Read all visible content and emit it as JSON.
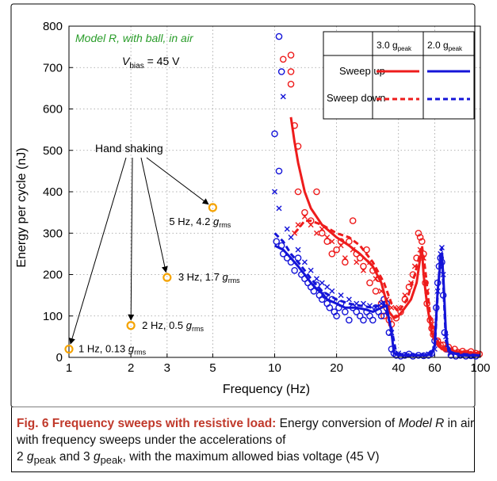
{
  "chart_data": {
    "type": "scatter",
    "xscale": "log",
    "xlim": [
      1,
      100
    ],
    "ylim": [
      0,
      800
    ],
    "xlabel": "Frequency (Hz)",
    "ylabel": "Energy per cycle (nJ)",
    "x_ticks": [
      1,
      2,
      3,
      5,
      10,
      20,
      40,
      60,
      100
    ],
    "y_ticks": [
      0,
      100,
      200,
      300,
      400,
      500,
      600,
      700,
      800
    ],
    "grid": true,
    "annotation_model": "Model R, with ball, in air",
    "annotation_vbias": {
      "prefix": "V",
      "sub": "bias",
      "suffix": " = 45 V"
    },
    "colors": {
      "3g": "#ee1c1c",
      "2g": "#1414d8",
      "hand": "#f5a300"
    },
    "legend": {
      "placement": "top-right",
      "col_headers": [
        {
          "main": "3.0 g",
          "sub": "peak"
        },
        {
          "main": "2.0 g",
          "sub": "peak"
        }
      ],
      "rows": [
        "Sweep up",
        "Sweep down"
      ]
    },
    "hand_shaking": {
      "label": "Hand shaking",
      "points": [
        {
          "x": 1,
          "y": 20,
          "label": "1 Hz, 0.13 g",
          "sub": "rms"
        },
        {
          "x": 2,
          "y": 77,
          "label": "2 Hz, 0.5 g",
          "sub": "rms"
        },
        {
          "x": 3,
          "y": 193,
          "label": "3 Hz, 1.7 g",
          "sub": "rms"
        },
        {
          "x": 5,
          "y": 362,
          "label": "5 Hz, 4.2 g",
          "sub": "rms"
        }
      ]
    },
    "series": [
      {
        "name": "3.0 gpeak sweep up",
        "color_key": "3g",
        "line": [
          [
            12,
            580
          ],
          [
            12.5,
            520
          ],
          [
            13,
            470
          ],
          [
            14,
            400
          ],
          [
            15,
            360
          ],
          [
            17,
            320
          ],
          [
            20,
            290
          ],
          [
            23,
            270
          ],
          [
            26,
            250
          ],
          [
            30,
            220
          ],
          [
            33,
            180
          ],
          [
            36,
            110
          ],
          [
            38,
            95
          ],
          [
            40,
            100
          ],
          [
            43,
            120
          ],
          [
            46,
            140
          ],
          [
            49,
            180
          ],
          [
            51,
            240
          ],
          [
            52,
            262
          ],
          [
            53,
            200
          ],
          [
            55,
            130
          ],
          [
            58,
            60
          ],
          [
            60,
            40
          ],
          [
            62,
            30
          ],
          [
            65,
            20
          ],
          [
            70,
            15
          ],
          [
            80,
            12
          ],
          [
            100,
            10
          ]
        ],
        "points": [
          [
            11,
            720
          ],
          [
            12,
            690
          ],
          [
            12,
            660
          ],
          [
            12,
            730
          ],
          [
            12.5,
            560
          ],
          [
            13,
            510
          ],
          [
            13,
            400
          ],
          [
            14,
            350
          ],
          [
            15,
            330
          ],
          [
            16,
            400
          ],
          [
            17,
            300
          ],
          [
            18,
            280
          ],
          [
            19,
            250
          ],
          [
            20,
            260
          ],
          [
            21,
            280
          ],
          [
            22,
            230
          ],
          [
            23,
            280
          ],
          [
            24,
            330
          ],
          [
            25,
            250
          ],
          [
            26,
            240
          ],
          [
            27,
            220
          ],
          [
            28,
            260
          ],
          [
            29,
            180
          ],
          [
            30,
            210
          ],
          [
            31,
            160
          ],
          [
            32,
            190
          ],
          [
            33,
            130
          ],
          [
            34,
            100
          ],
          [
            35,
            120
          ],
          [
            36,
            90
          ],
          [
            37,
            80
          ],
          [
            39,
            95
          ],
          [
            41,
            110
          ],
          [
            43,
            140
          ],
          [
            45,
            170
          ],
          [
            47,
            200
          ],
          [
            49,
            240
          ],
          [
            50,
            300
          ],
          [
            51,
            290
          ],
          [
            52,
            280
          ],
          [
            53,
            250
          ],
          [
            54,
            180
          ],
          [
            55,
            130
          ],
          [
            57,
            90
          ],
          [
            58,
            70
          ],
          [
            59,
            55
          ],
          [
            62,
            40
          ],
          [
            64,
            30
          ],
          [
            66,
            30
          ],
          [
            68,
            20
          ],
          [
            70,
            25
          ],
          [
            72,
            15
          ],
          [
            75,
            20
          ],
          [
            78,
            12
          ],
          [
            82,
            15
          ],
          [
            86,
            10
          ],
          [
            90,
            14
          ],
          [
            95,
            10
          ],
          [
            99,
            8
          ]
        ]
      },
      {
        "name": "3.0 gpeak sweep down",
        "color_key": "3g",
        "line": [
          [
            12.5,
            300
          ],
          [
            13,
            310
          ],
          [
            14,
            330
          ],
          [
            15,
            330
          ],
          [
            17,
            320
          ],
          [
            20,
            300
          ],
          [
            23,
            290
          ],
          [
            26,
            270
          ],
          [
            30,
            230
          ],
          [
            34,
            180
          ],
          [
            37,
            130
          ],
          [
            40,
            110
          ],
          [
            44,
            140
          ],
          [
            48,
            200
          ],
          [
            52,
            270
          ],
          [
            54,
            210
          ],
          [
            57,
            100
          ],
          [
            60,
            50
          ],
          [
            65,
            25
          ],
          [
            75,
            15
          ],
          [
            100,
            10
          ]
        ],
        "points": [
          [
            12.5,
            300
          ],
          [
            13,
            320
          ],
          [
            14,
            340
          ],
          [
            15,
            320
          ],
          [
            16,
            300
          ],
          [
            17,
            310
          ],
          [
            18,
            290
          ],
          [
            19,
            280
          ],
          [
            21,
            270
          ],
          [
            22,
            240
          ],
          [
            24,
            260
          ],
          [
            25,
            230
          ],
          [
            27,
            210
          ],
          [
            29,
            230
          ],
          [
            31,
            190
          ],
          [
            33,
            160
          ],
          [
            35,
            140
          ],
          [
            37,
            120
          ],
          [
            40,
            120
          ],
          [
            43,
            150
          ],
          [
            46,
            180
          ],
          [
            48,
            220
          ],
          [
            51,
            260
          ],
          [
            53,
            240
          ],
          [
            55,
            160
          ],
          [
            58,
            80
          ],
          [
            62,
            40
          ],
          [
            66,
            25
          ],
          [
            72,
            18
          ],
          [
            78,
            14
          ],
          [
            85,
            12
          ],
          [
            92,
            10
          ]
        ]
      },
      {
        "name": "2.0 gpeak sweep up",
        "color_key": "2g",
        "line": [
          [
            10,
            270
          ],
          [
            11,
            260
          ],
          [
            12,
            240
          ],
          [
            13,
            220
          ],
          [
            14,
            200
          ],
          [
            15,
            180
          ],
          [
            16,
            165
          ],
          [
            17,
            155
          ],
          [
            18,
            140
          ],
          [
            20,
            130
          ],
          [
            22,
            120
          ],
          [
            25,
            120
          ],
          [
            28,
            115
          ],
          [
            30,
            110
          ],
          [
            33,
            120
          ],
          [
            35,
            125
          ],
          [
            37,
            60
          ],
          [
            38,
            10
          ],
          [
            40,
            5
          ],
          [
            45,
            5
          ],
          [
            55,
            5
          ],
          [
            58,
            8
          ],
          [
            60,
            30
          ],
          [
            62,
            160
          ],
          [
            64,
            230
          ],
          [
            65,
            240
          ],
          [
            66,
            200
          ],
          [
            68,
            60
          ],
          [
            70,
            15
          ],
          [
            80,
            5
          ],
          [
            100,
            5
          ]
        ],
        "points": [
          [
            10,
            540
          ],
          [
            10.5,
            775
          ],
          [
            10.8,
            690
          ],
          [
            10.5,
            450
          ],
          [
            10.2,
            280
          ],
          [
            10.8,
            270
          ],
          [
            11,
            250
          ],
          [
            11.5,
            240
          ],
          [
            12,
            230
          ],
          [
            12.5,
            210
          ],
          [
            13,
            240
          ],
          [
            13.5,
            200
          ],
          [
            14,
            190
          ],
          [
            14.5,
            180
          ],
          [
            15,
            170
          ],
          [
            15.5,
            160
          ],
          [
            16,
            175
          ],
          [
            16.5,
            150
          ],
          [
            17,
            140
          ],
          [
            17.5,
            150
          ],
          [
            18,
            130
          ],
          [
            18.5,
            120
          ],
          [
            19,
            140
          ],
          [
            19.5,
            110
          ],
          [
            20,
            100
          ],
          [
            20.5,
            120
          ],
          [
            21,
            130
          ],
          [
            22,
            110
          ],
          [
            23,
            90
          ],
          [
            24,
            120
          ],
          [
            25,
            110
          ],
          [
            26,
            100
          ],
          [
            27,
            90
          ],
          [
            28,
            110
          ],
          [
            29,
            100
          ],
          [
            30,
            90
          ],
          [
            31,
            120
          ],
          [
            32,
            110
          ],
          [
            33,
            100
          ],
          [
            34,
            140
          ],
          [
            35,
            130
          ],
          [
            36,
            60
          ],
          [
            37,
            20
          ],
          [
            38,
            10
          ],
          [
            39,
            5
          ],
          [
            41,
            3
          ],
          [
            43,
            5
          ],
          [
            45,
            8
          ],
          [
            47,
            3
          ],
          [
            50,
            5
          ],
          [
            53,
            4
          ],
          [
            56,
            5
          ],
          [
            58,
            10
          ],
          [
            60,
            40
          ],
          [
            61,
            120
          ],
          [
            62,
            180
          ],
          [
            63,
            220
          ],
          [
            64,
            240
          ],
          [
            65,
            230
          ],
          [
            66,
            150
          ],
          [
            67,
            60
          ],
          [
            69,
            20
          ],
          [
            72,
            5
          ],
          [
            76,
            3
          ],
          [
            80,
            5
          ],
          [
            85,
            3
          ],
          [
            90,
            4
          ],
          [
            95,
            3
          ]
        ]
      },
      {
        "name": "2.0 gpeak sweep down",
        "color_key": "2g",
        "line": [
          [
            10,
            300
          ],
          [
            11,
            280
          ],
          [
            12,
            250
          ],
          [
            13,
            230
          ],
          [
            14,
            210
          ],
          [
            15,
            190
          ],
          [
            17,
            160
          ],
          [
            20,
            140
          ],
          [
            23,
            130
          ],
          [
            26,
            125
          ],
          [
            30,
            120
          ],
          [
            34,
            130
          ],
          [
            37,
            70
          ],
          [
            39,
            10
          ],
          [
            45,
            5
          ],
          [
            55,
            5
          ],
          [
            60,
            20
          ],
          [
            62,
            150
          ],
          [
            64,
            250
          ],
          [
            65,
            265
          ],
          [
            66,
            180
          ],
          [
            68,
            40
          ],
          [
            72,
            10
          ],
          [
            100,
            5
          ]
        ],
        "points": [
          [
            10,
            400
          ],
          [
            10.5,
            360
          ],
          [
            11,
            630
          ],
          [
            11.5,
            310
          ],
          [
            12,
            290
          ],
          [
            13,
            260
          ],
          [
            14,
            230
          ],
          [
            15,
            210
          ],
          [
            16,
            190
          ],
          [
            17,
            180
          ],
          [
            18,
            170
          ],
          [
            19,
            160
          ],
          [
            21,
            150
          ],
          [
            23,
            140
          ],
          [
            25,
            130
          ],
          [
            27,
            130
          ],
          [
            29,
            125
          ],
          [
            31,
            120
          ],
          [
            33,
            130
          ],
          [
            35,
            110
          ],
          [
            37,
            60
          ],
          [
            40,
            10
          ],
          [
            44,
            5
          ],
          [
            48,
            5
          ],
          [
            52,
            6
          ],
          [
            56,
            8
          ],
          [
            60,
            20
          ],
          [
            62,
            160
          ],
          [
            64,
            250
          ],
          [
            65,
            265
          ],
          [
            66,
            200
          ],
          [
            68,
            50
          ],
          [
            72,
            10
          ],
          [
            80,
            5
          ],
          [
            90,
            5
          ]
        ]
      }
    ]
  },
  "caption": {
    "title": "Fig. 6 Frequency sweeps with resistive load:",
    "t1": " Energy conversion of ",
    "t2": "Model R",
    "t3": " in air with frequency sweeps under the accelerations of",
    "t4": "2 ",
    "t5": "g",
    "t6": "peak",
    "t7": " and 3 ",
    "t8": "g",
    "t9": "peak",
    "t10": ", with the maximum allowed bias voltage (45 V)"
  }
}
